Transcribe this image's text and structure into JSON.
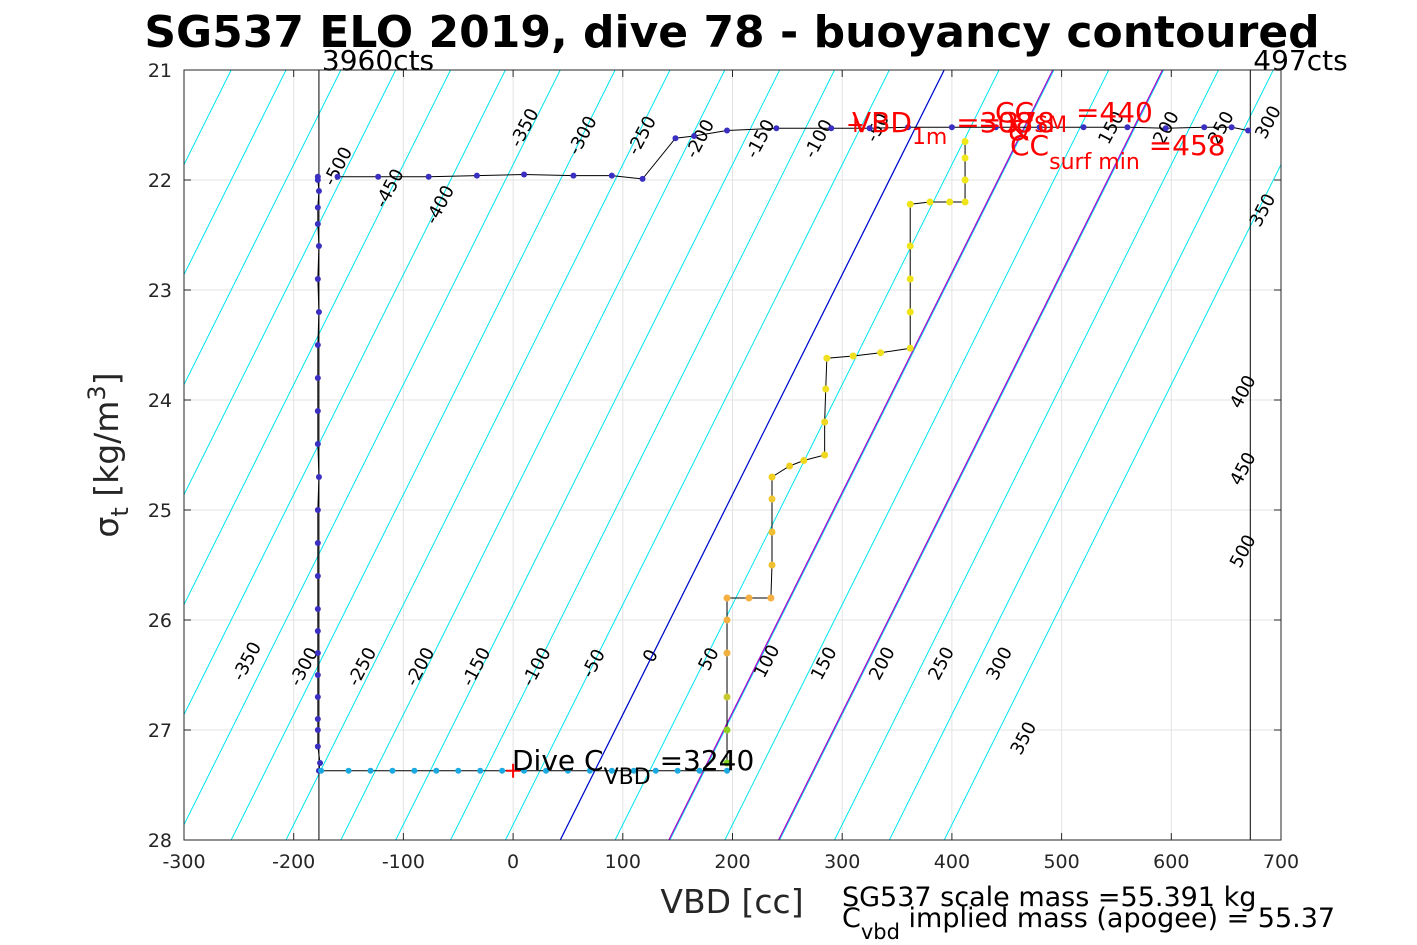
{
  "chart_data": {
    "type": "scatter",
    "title": "SG537 ELO 2019, dive 78 - buoyancy contoured",
    "xlabel": "VBD [cc]",
    "ylabel_main": "σ",
    "ylabel_sub": "t",
    "ylabel_units": " [kg/m",
    "ylabel_sup": "3",
    "ylabel_close": "]",
    "xlim": [
      -300,
      700
    ],
    "ylim": [
      21,
      28
    ],
    "y_reversed": true,
    "grid": true,
    "x_ticks": [
      -300,
      -200,
      -100,
      0,
      100,
      200,
      300,
      400,
      500,
      600,
      700
    ],
    "x_tick_labels": [
      "-300",
      "-200",
      "-100",
      "0",
      "100",
      "200",
      "300",
      "400",
      "500",
      "600",
      "700"
    ],
    "y_ticks": [
      21,
      22,
      23,
      24,
      25,
      26,
      27,
      28
    ],
    "y_tick_labels": [
      "21",
      "22",
      "23",
      "24",
      "25",
      "26",
      "27",
      "28"
    ],
    "limit_lines": [
      {
        "x": -177,
        "label": "3960cts"
      },
      {
        "x": 672,
        "label": "497cts"
      }
    ],
    "contour_color": "#00e5ee",
    "contour_slope_cc_per_unit": -50,
    "contour_levels": [
      -600,
      -550,
      -500,
      -450,
      -400,
      -350,
      -300,
      -250,
      -200,
      -150,
      -100,
      -50,
      0,
      50,
      100,
      150,
      200,
      250,
      300,
      350,
      400,
      450,
      500,
      550,
      600,
      650
    ],
    "contour_labels": [
      {
        "text": "-350",
        "x": -238,
        "y": 26.4
      },
      {
        "text": "-300",
        "x": -186,
        "y": 26.45
      },
      {
        "text": "-250",
        "x": -133,
        "y": 26.45
      },
      {
        "text": "-200",
        "x": -80,
        "y": 26.45
      },
      {
        "text": "-150",
        "x": -29,
        "y": 26.45
      },
      {
        "text": "-100",
        "x": 26,
        "y": 26.45
      },
      {
        "text": "-50",
        "x": 78,
        "y": 26.42
      },
      {
        "text": "0",
        "x": 130,
        "y": 26.35
      },
      {
        "text": "50",
        "x": 183,
        "y": 26.38
      },
      {
        "text": "100",
        "x": 236,
        "y": 26.4
      },
      {
        "text": "150",
        "x": 288,
        "y": 26.42
      },
      {
        "text": "200",
        "x": 341,
        "y": 26.42
      },
      {
        "text": "250",
        "x": 395,
        "y": 26.42
      },
      {
        "text": "300",
        "x": 448,
        "y": 26.42
      },
      {
        "text": "350",
        "x": 470,
        "y": 27.1
      },
      {
        "text": "-500",
        "x": -155,
        "y": 21.9
      },
      {
        "text": "-450",
        "x": -108,
        "y": 22.1
      },
      {
        "text": "-400",
        "x": -62,
        "y": 22.25
      },
      {
        "text": "-350",
        "x": 15,
        "y": 21.55
      },
      {
        "text": "-300",
        "x": 68,
        "y": 21.62
      },
      {
        "text": "-250",
        "x": 122,
        "y": 21.62
      },
      {
        "text": "-200",
        "x": 175,
        "y": 21.65
      },
      {
        "text": "-150",
        "x": 230,
        "y": 21.65
      },
      {
        "text": "-100",
        "x": 283,
        "y": 21.65
      },
      {
        "text": "-50",
        "x": 337,
        "y": 21.55
      },
      {
        "text": "150",
        "x": 550,
        "y": 21.55
      },
      {
        "text": "200",
        "x": 600,
        "y": 21.55
      },
      {
        "text": "250",
        "x": 650,
        "y": 21.55
      },
      {
        "text": "300",
        "x": 693,
        "y": 21.5
      },
      {
        "text": "350",
        "x": 688,
        "y": 22.3
      },
      {
        "text": "400",
        "x": 670,
        "y": 23.95
      },
      {
        "text": "450",
        "x": 670,
        "y": 24.65
      },
      {
        "text": "500",
        "x": 670,
        "y": 25.4
      }
    ],
    "reference_lines": [
      {
        "color": "#0000cc",
        "x_at_top": 393,
        "slope_cc_per_unit": -50
      },
      {
        "color": "#aa00cc",
        "x_at_top": 492,
        "slope_cc_per_unit": -50
      },
      {
        "color": "#aa00cc",
        "x_at_top": 592,
        "slope_cc_per_unit": -50
      }
    ],
    "dive_series": {
      "name": "dive",
      "color": "#3a2fc0",
      "points": [
        [
          -177,
          27.37
        ],
        [
          -176,
          27.3
        ],
        [
          -178,
          27.15
        ],
        [
          -178,
          27.0
        ],
        [
          -178,
          26.9
        ],
        [
          -178,
          26.7
        ],
        [
          -178,
          26.5
        ],
        [
          -178,
          26.3
        ],
        [
          -178,
          26.1
        ],
        [
          -178,
          25.9
        ],
        [
          -178,
          25.6
        ],
        [
          -178,
          25.3
        ],
        [
          -178,
          25.0
        ],
        [
          -177,
          24.7
        ],
        [
          -178,
          24.4
        ],
        [
          -178,
          24.1
        ],
        [
          -178,
          23.8
        ],
        [
          -178,
          23.5
        ],
        [
          -177,
          23.2
        ],
        [
          -178,
          22.9
        ],
        [
          -177,
          22.6
        ],
        [
          -178,
          22.4
        ],
        [
          -178,
          22.25
        ],
        [
          -177,
          22.1
        ],
        [
          -178,
          22.0
        ],
        [
          -178,
          21.97
        ]
      ]
    },
    "bottom_series": {
      "name": "apogee",
      "color": "#1aa9e0",
      "points": [
        [
          -175,
          27.37
        ],
        [
          -150,
          27.37
        ],
        [
          -130,
          27.37
        ],
        [
          -110,
          27.37
        ],
        [
          -90,
          27.37
        ],
        [
          -70,
          27.37
        ],
        [
          -50,
          27.37
        ],
        [
          -30,
          27.37
        ],
        [
          -10,
          27.37
        ],
        [
          10,
          27.37
        ],
        [
          30,
          27.37
        ],
        [
          50,
          27.37
        ],
        [
          70,
          27.37
        ],
        [
          90,
          27.37
        ],
        [
          110,
          27.37
        ],
        [
          130,
          27.37
        ],
        [
          150,
          27.37
        ],
        [
          170,
          27.37
        ],
        [
          195,
          27.37
        ]
      ]
    },
    "climb_series": {
      "name": "climb",
      "points": [
        [
          195,
          27.3,
          "#7ed321"
        ],
        [
          195,
          27.0,
          "#8fd020"
        ],
        [
          195,
          26.7,
          "#c8c830"
        ],
        [
          195,
          26.3,
          "#f0b040"
        ],
        [
          195,
          26.0,
          "#f5b041"
        ],
        [
          195,
          25.8,
          "#f5b041"
        ],
        [
          215,
          25.8,
          "#f5b041"
        ],
        [
          235,
          25.8,
          "#f5b041"
        ],
        [
          236,
          25.5,
          "#f0c030"
        ],
        [
          236,
          25.2,
          "#f0c030"
        ],
        [
          236,
          24.9,
          "#f0c830"
        ],
        [
          236,
          24.7,
          "#f0d020"
        ],
        [
          252,
          24.6,
          "#f0d020"
        ],
        [
          265,
          24.55,
          "#f0d820"
        ],
        [
          284,
          24.5,
          "#f0d820"
        ],
        [
          284,
          24.2,
          "#f0d820"
        ],
        [
          285,
          23.9,
          "#f0e020"
        ],
        [
          286,
          23.62,
          "#f0e020"
        ],
        [
          310,
          23.6,
          "#f0e020"
        ],
        [
          335,
          23.57,
          "#f0e020"
        ],
        [
          362,
          23.53,
          "#f0e020"
        ],
        [
          362,
          23.2,
          "#f0e418"
        ],
        [
          362,
          22.9,
          "#f0e418"
        ],
        [
          362,
          22.6,
          "#f0e418"
        ],
        [
          362,
          22.22,
          "#f0e418"
        ],
        [
          380,
          22.2,
          "#f0e418"
        ],
        [
          398,
          22.2,
          "#f0e418"
        ],
        [
          412,
          22.2,
          "#f0e418"
        ],
        [
          412,
          22.0,
          "#f0e818"
        ],
        [
          412,
          21.8,
          "#f0e818"
        ],
        [
          412,
          21.65,
          "#f0e818"
        ]
      ]
    },
    "surface_series": {
      "name": "surface",
      "color": "#3a2fc0",
      "points": [
        [
          -160,
          21.97
        ],
        [
          -123,
          21.97
        ],
        [
          -77,
          21.97
        ],
        [
          -33,
          21.96
        ],
        [
          10,
          21.95
        ],
        [
          55,
          21.96
        ],
        [
          90,
          21.96
        ],
        [
          118,
          21.99
        ],
        [
          148,
          21.62
        ],
        [
          165,
          21.6
        ],
        [
          195,
          21.55
        ],
        [
          240,
          21.53
        ],
        [
          290,
          21.53
        ],
        [
          325,
          21.53
        ],
        [
          360,
          21.52
        ],
        [
          400,
          21.52
        ],
        [
          440,
          21.52
        ],
        [
          480,
          21.52
        ],
        [
          520,
          21.52
        ],
        [
          560,
          21.52
        ],
        [
          595,
          21.53
        ],
        [
          630,
          21.52
        ],
        [
          655,
          21.52
        ],
        [
          670,
          21.55
        ]
      ]
    },
    "dive_cvbd_marker": {
      "x": 0,
      "y": 27.37
    },
    "surface_marker": {
      "x": 312,
      "y": 21.5
    },
    "annotations": {
      "vbd_label_main": "VBD",
      "vbd_label_sub": "1m",
      "vbd_label_value": " =308",
      "vbd_overlap": "=378",
      "cc_label_main": "CC",
      "cc_label_sub": "SM",
      "cc_label_value": " =440",
      "cc_overlap": "&",
      "ccsurf_label_main": "CC",
      "ccsurf_label_sub": "surf min",
      "ccsurf_label_value": " =458",
      "dive_label_main": "Dive C",
      "dive_label_sub": "VBD",
      "dive_label_value": " =3240",
      "mass_line1": "SG537 scale mass =55.391 kg",
      "mass_line2_main": "C",
      "mass_line2_sub": "vbd",
      "mass_line2_value": " implied mass (apogee) = 55.37"
    }
  }
}
